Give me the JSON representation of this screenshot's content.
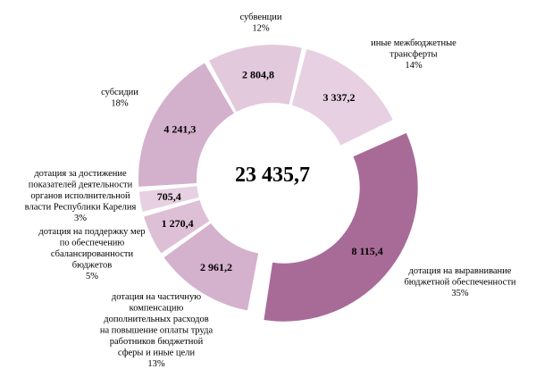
{
  "chart_data": {
    "type": "pie",
    "style": "donut",
    "total_label": "23 435,7",
    "slices": [
      {
        "category": [
          "дотация на выравнивание",
          "бюджетной обеспеченности"
        ],
        "value": 8115.4,
        "value_label": "8 115,4",
        "percent": "35%",
        "color": "#a86b97",
        "exploded": true
      },
      {
        "category": [
          "дотация на частичную",
          "компенсацию",
          "дополнительных расходов",
          "на повышение оплаты труда",
          "работников бюджетной",
          "сферы и иные цели"
        ],
        "value": 2961.2,
        "value_label": "2 961,2",
        "percent": "13%",
        "color": "#d4b1cc",
        "exploded": false
      },
      {
        "category": [
          "дотация на поддержку мер",
          "по обеспечению",
          "сбалансированности",
          "бюджетов"
        ],
        "value": 1270.4,
        "value_label": "1 270,4",
        "percent": "5%",
        "color": "#ddbfd6",
        "exploded": false
      },
      {
        "category": [
          "дотация за достижение",
          "показателей деятельности",
          "органов исполнительной",
          "власти Республики Карелия"
        ],
        "value": 705.4,
        "value_label": "705,4",
        "percent": "3%",
        "color": "#e7d0e1",
        "exploded": false
      },
      {
        "category": [
          "субсидии"
        ],
        "value": 4241.3,
        "value_label": "4 241,3",
        "percent": "18%",
        "color": "#d3b0cb",
        "exploded": false
      },
      {
        "category": [
          "субвенции"
        ],
        "value": 2804.8,
        "value_label": "2 804,8",
        "percent": "12%",
        "color": "#e2c9dc",
        "exploded": false
      },
      {
        "category": [
          "иные межбюджетные",
          "трансферты"
        ],
        "value": 3337.2,
        "value_label": "3 337,2",
        "percent": "14%",
        "color": "#e6d0e1",
        "exploded": false
      }
    ]
  }
}
